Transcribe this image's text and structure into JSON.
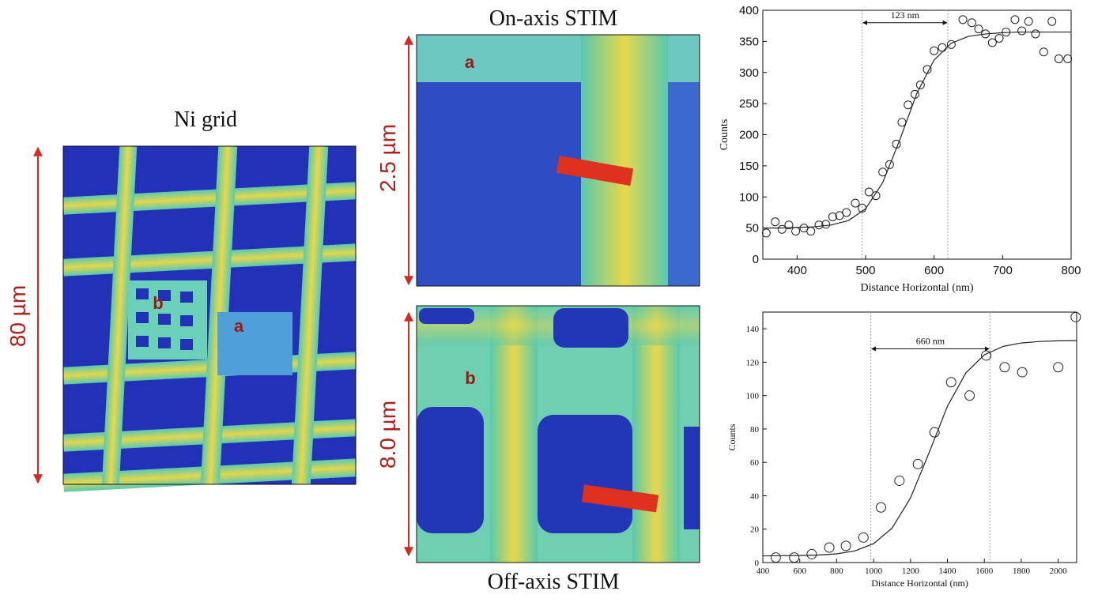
{
  "panels": {
    "ni_grid": {
      "title": "Ni grid",
      "scale": "80 µm",
      "labels": [
        "b",
        "a"
      ]
    },
    "on_axis": {
      "title": "On-axis STIM",
      "scale": "2.5 µm",
      "label": "a"
    },
    "off_axis": {
      "title": "Off-axis STIM",
      "scale": "8.0 µm",
      "label": "b"
    }
  },
  "chart_data": [
    {
      "type": "scatter",
      "xlabel": "Distance Horizontal (nm)",
      "ylabel": "Counts",
      "xlim": [
        350,
        800
      ],
      "xticks": [
        400,
        500,
        600,
        700,
        800
      ],
      "ylim": [
        0,
        400
      ],
      "yticks": [
        0,
        50,
        100,
        150,
        200,
        250,
        300,
        350,
        400
      ],
      "series": [
        {
          "style": "circle",
          "color": "#222222",
          "x": [
            355,
            368,
            378,
            388,
            398,
            410,
            420,
            432,
            442,
            452,
            462,
            472,
            485,
            495,
            505,
            515,
            525,
            535,
            545,
            553,
            562,
            572,
            580,
            590,
            600,
            612,
            625,
            642,
            655,
            665,
            675,
            685,
            695,
            705,
            718,
            728,
            738,
            748,
            760,
            772,
            782,
            795
          ],
          "values": [
            42,
            60,
            48,
            55,
            45,
            50,
            45,
            55,
            56,
            68,
            70,
            75,
            90,
            82,
            108,
            102,
            140,
            152,
            185,
            220,
            248,
            265,
            280,
            305,
            335,
            340,
            345,
            385,
            380,
            370,
            362,
            348,
            355,
            365,
            385,
            367,
            382,
            362,
            333,
            382,
            322,
            322
          ]
        },
        {
          "style": "line",
          "color": "#222222",
          "x": [
            350,
            375,
            400,
            425,
            450,
            475,
            500,
            525,
            550,
            575,
            600,
            625,
            650,
            675,
            700,
            725,
            750,
            775,
            800
          ],
          "values": [
            50,
            50,
            51,
            52,
            55,
            62,
            81,
            123,
            192,
            267,
            320,
            347,
            358,
            362,
            364,
            365,
            365,
            365,
            365
          ]
        }
      ],
      "annotations": [
        {
          "text": "123 nm",
          "x1": 495,
          "x2": 620,
          "y": 380
        }
      ]
    },
    {
      "type": "scatter",
      "xlabel": "Distance Horizontal (nm)",
      "ylabel": "Counts",
      "xlim": [
        400,
        2100
      ],
      "xticks": [
        400,
        600,
        800,
        1000,
        1200,
        1400,
        1600,
        1800,
        2000
      ],
      "ylim": [
        0,
        150
      ],
      "yticks": [
        0,
        20,
        40,
        60,
        80,
        100,
        120,
        140
      ],
      "series": [
        {
          "style": "circle",
          "color": "#222222",
          "x": [
            470,
            570,
            665,
            760,
            850,
            945,
            1040,
            1140,
            1240,
            1330,
            1420,
            1520,
            1610,
            1710,
            1805,
            2000,
            2095
          ],
          "values": [
            3,
            3,
            5,
            9,
            10,
            15,
            33,
            49,
            59,
            78,
            108,
            100,
            124,
            117,
            114,
            117,
            147
          ]
        },
        {
          "style": "line",
          "color": "#222222",
          "x": [
            400,
            500,
            600,
            700,
            800,
            900,
            1000,
            1100,
            1200,
            1300,
            1400,
            1500,
            1600,
            1700,
            1800,
            1900,
            2000,
            2100
          ],
          "values": [
            4,
            4.1,
            4.2,
            4.5,
            5.2,
            7,
            11.3,
            20.6,
            38.7,
            65.6,
            93.6,
            113.6,
            124.4,
            129.4,
            131.5,
            132.4,
            132.8,
            132.9
          ]
        }
      ],
      "annotations": [
        {
          "text": "660 nm",
          "x1": 985,
          "x2": 1630,
          "y": 128
        }
      ]
    }
  ]
}
